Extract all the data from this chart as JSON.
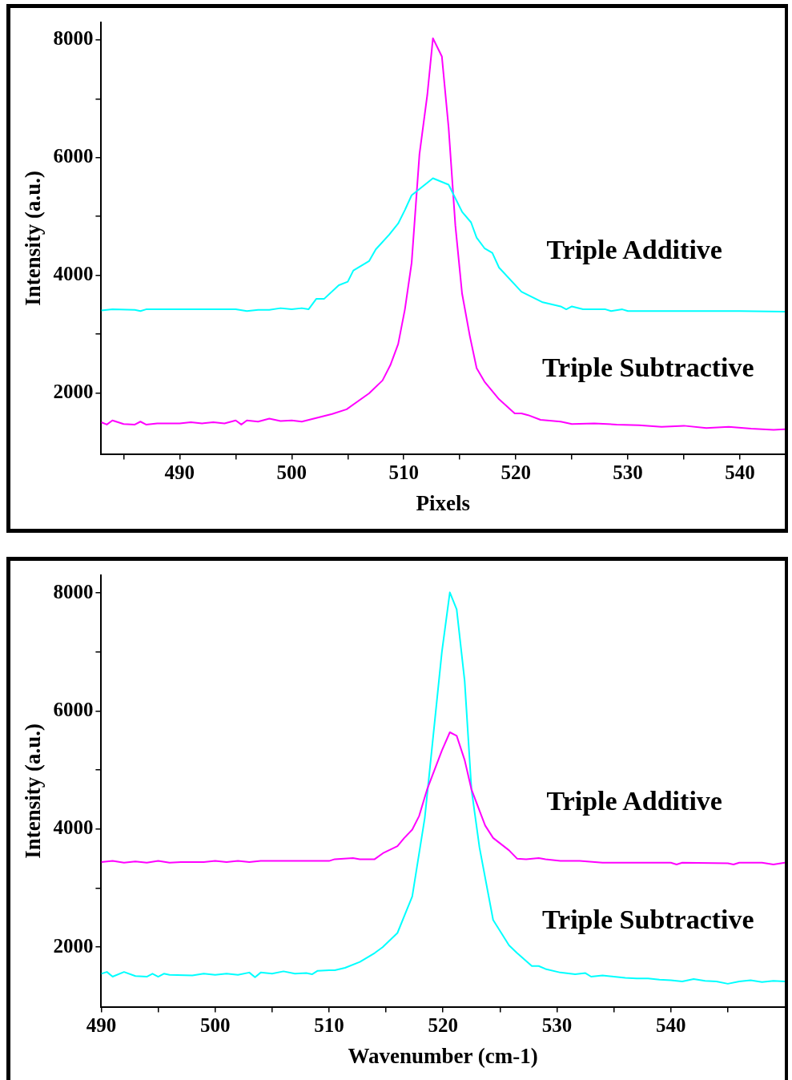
{
  "chart_data": [
    {
      "type": "line",
      "xlabel": "Pixels",
      "ylabel": "Intensity (a.u.)",
      "xlim": [
        483,
        544
      ],
      "ylim": [
        960,
        8300
      ],
      "xticks": [
        {
          "value": 485,
          "label": null
        },
        490,
        {
          "value": 495,
          "label": null
        },
        500,
        {
          "value": 505,
          "label": null
        },
        510,
        {
          "value": 515,
          "label": null
        },
        520,
        {
          "value": 525,
          "label": null
        },
        530,
        {
          "value": 535,
          "label": null
        },
        540
      ],
      "yticks": [
        2000,
        {
          "value": 3000,
          "label": null
        },
        4000,
        {
          "value": 5000,
          "label": null
        },
        6000,
        {
          "value": 7000,
          "label": null
        },
        8000
      ],
      "grid": false,
      "legend": false,
      "marker": "none",
      "line_style": "solid",
      "series": [
        {
          "name": "Triple Additive",
          "color": "#00ffff",
          "x": [
            483,
            484,
            486,
            486.5,
            487,
            490,
            495,
            496,
            497,
            498,
            499,
            500,
            500.9,
            501.5,
            502.2,
            502.9,
            504.2,
            505.0,
            505.5,
            506.9,
            507.5,
            508.7,
            509.5,
            510.1,
            510.7,
            512.6,
            514.0,
            515.2,
            516.0,
            516.5,
            517.2,
            517.9,
            518.5,
            520.5,
            522.4,
            524,
            524.5,
            525,
            526,
            528,
            528.5,
            529.5,
            530,
            535,
            540,
            544
          ],
          "values": [
            3400,
            3420,
            3410,
            3390,
            3420,
            3420,
            3420,
            3390,
            3410,
            3410,
            3440,
            3420,
            3440,
            3420,
            3600,
            3600,
            3830,
            3890,
            4080,
            4240,
            4440,
            4690,
            4880,
            5110,
            5360,
            5650,
            5540,
            5080,
            4900,
            4640,
            4460,
            4380,
            4130,
            3720,
            3540,
            3470,
            3420,
            3470,
            3420,
            3420,
            3390,
            3420,
            3390,
            3390,
            3390,
            3380
          ]
        },
        {
          "name": "Triple Subtractive",
          "color": "#ff00ff",
          "x": [
            483,
            483.5,
            484,
            485,
            486,
            486.5,
            487,
            488,
            490,
            491,
            492,
            493,
            494,
            495,
            495.5,
            496,
            497,
            498,
            499,
            500,
            500.9,
            503.6,
            504.9,
            506.9,
            508.1,
            508.8,
            509.5,
            510.1,
            510.7,
            511.4,
            512.1,
            512.6,
            513.4,
            514.0,
            514.6,
            515.2,
            515.9,
            516.5,
            517.2,
            518.5,
            519.9,
            520.5,
            521.1,
            522.2,
            524,
            525,
            527,
            529,
            531,
            533,
            535,
            537,
            539,
            541,
            543,
            544
          ],
          "values": [
            1500,
            1460,
            1530,
            1470,
            1460,
            1510,
            1460,
            1480,
            1480,
            1500,
            1480,
            1500,
            1480,
            1530,
            1460,
            1530,
            1510,
            1560,
            1520,
            1530,
            1510,
            1640,
            1720,
            1990,
            2210,
            2470,
            2830,
            3420,
            4210,
            6060,
            7070,
            8030,
            7720,
            6510,
            4850,
            3690,
            2960,
            2420,
            2190,
            1890,
            1650,
            1650,
            1620,
            1540,
            1510,
            1470,
            1480,
            1460,
            1450,
            1420,
            1440,
            1400,
            1420,
            1390,
            1370,
            1380
          ]
        }
      ]
    },
    {
      "type": "line",
      "xlabel": "Wavenumber (cm-1)",
      "ylabel": "Intensity (a.u.)",
      "xlim": [
        490,
        550
      ],
      "ylim": [
        990,
        8300
      ],
      "xticks": [
        490,
        {
          "value": 495,
          "label": null
        },
        500,
        {
          "value": 505,
          "label": null
        },
        510,
        {
          "value": 515,
          "label": null
        },
        520,
        {
          "value": 525,
          "label": null
        },
        530,
        {
          "value": 535,
          "label": null
        },
        540,
        {
          "value": 545,
          "label": null
        }
      ],
      "yticks": [
        2000,
        {
          "value": 3000,
          "label": null
        },
        4000,
        {
          "value": 5000,
          "label": null
        },
        6000,
        {
          "value": 7000,
          "label": null
        },
        8000
      ],
      "grid": false,
      "legend": false,
      "marker": "none",
      "line_style": "solid",
      "series": [
        {
          "name": "Triple Additive",
          "color": "#ff00ff",
          "x": [
            490,
            491,
            492,
            493,
            494,
            495,
            496,
            497,
            499,
            500,
            501,
            502,
            503,
            504,
            505,
            510,
            510.5,
            512.1,
            512.7,
            514.0,
            514.8,
            516.0,
            516.6,
            517.3,
            517.9,
            518.6,
            519.9,
            520.6,
            521.2,
            521.9,
            522.5,
            523.7,
            524.4,
            525.8,
            526.5,
            527.3,
            528.4,
            529.0,
            530.3,
            532,
            534,
            540,
            540.5,
            541,
            545,
            545.5,
            546,
            548,
            549,
            550
          ],
          "values": [
            3440,
            3460,
            3430,
            3450,
            3430,
            3460,
            3430,
            3440,
            3440,
            3460,
            3440,
            3460,
            3440,
            3460,
            3460,
            3460,
            3490,
            3510,
            3490,
            3490,
            3600,
            3710,
            3850,
            3990,
            4220,
            4670,
            5330,
            5640,
            5580,
            5170,
            4670,
            4060,
            3850,
            3640,
            3500,
            3490,
            3510,
            3490,
            3460,
            3460,
            3430,
            3430,
            3400,
            3430,
            3420,
            3400,
            3430,
            3430,
            3400,
            3430
          ]
        },
        {
          "name": "Triple Subtractive",
          "color": "#00ffff",
          "x": [
            490,
            490.5,
            491,
            492,
            493,
            494,
            494.5,
            495,
            495.5,
            496,
            498,
            499,
            500,
            501,
            502,
            503,
            503.5,
            504,
            505,
            506,
            507,
            508,
            508.5,
            509,
            510,
            510.5,
            511.4,
            512.7,
            514.0,
            514.7,
            516.0,
            517.3,
            518.4,
            519.9,
            520.6,
            521.2,
            521.9,
            522.5,
            523.2,
            524.4,
            525.8,
            526.5,
            527.8,
            528.4,
            529.0,
            530.3,
            531.6,
            532.5,
            533,
            534,
            535,
            536,
            537,
            538,
            539,
            540,
            541,
            542,
            543,
            544,
            545,
            546,
            547,
            548,
            549,
            550
          ],
          "values": [
            1550,
            1580,
            1500,
            1580,
            1510,
            1500,
            1550,
            1500,
            1550,
            1530,
            1520,
            1550,
            1530,
            1550,
            1530,
            1570,
            1490,
            1570,
            1550,
            1590,
            1550,
            1560,
            1540,
            1600,
            1610,
            1610,
            1650,
            1750,
            1900,
            2000,
            2240,
            2860,
            4190,
            7000,
            8010,
            7720,
            6510,
            4670,
            3690,
            2460,
            2030,
            1900,
            1680,
            1680,
            1630,
            1570,
            1540,
            1560,
            1500,
            1520,
            1500,
            1480,
            1470,
            1470,
            1450,
            1440,
            1420,
            1460,
            1430,
            1420,
            1380,
            1420,
            1440,
            1410,
            1430,
            1420
          ]
        }
      ]
    }
  ]
}
